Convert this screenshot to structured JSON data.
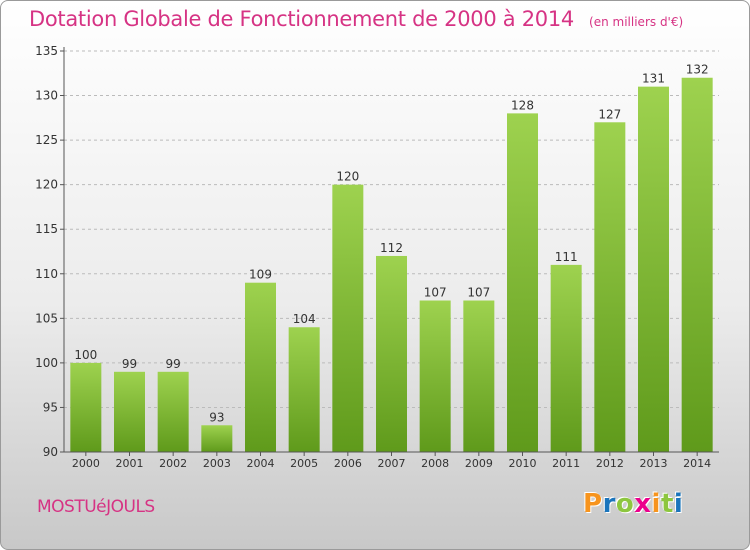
{
  "chart_data": {
    "type": "bar",
    "title": "Dotation Globale de Fonctionnement de 2000 à 2014",
    "subtitle": "(en milliers d'€)",
    "categories": [
      "2000",
      "2001",
      "2002",
      "2003",
      "2004",
      "2005",
      "2006",
      "2007",
      "2008",
      "2009",
      "2010",
      "2011",
      "2012",
      "2013",
      "2014"
    ],
    "values": [
      100,
      99,
      99,
      93,
      109,
      104,
      120,
      112,
      107,
      107,
      128,
      111,
      127,
      131,
      132
    ],
    "ylim": [
      90,
      135
    ],
    "yticks": [
      90,
      95,
      100,
      105,
      110,
      115,
      120,
      125,
      130,
      135
    ],
    "xlabel": "",
    "ylabel": "",
    "grid": true,
    "bar_color": "#8cc63f",
    "bar_color_dark": "#5f9a1b"
  },
  "footer": {
    "commune": "MOSTUéJOULS",
    "brand": [
      "P",
      "r",
      "o",
      "x",
      "i",
      "t",
      "i"
    ],
    "brand_colors": [
      "#f7941d",
      "#1b75bc",
      "#8dc63f",
      "#ec008c",
      "#f7941d",
      "#8dc63f",
      "#1b75bc"
    ]
  },
  "colors": {
    "accent": "#d63384",
    "axis": "#555555",
    "grid": "#bbbbbb"
  }
}
